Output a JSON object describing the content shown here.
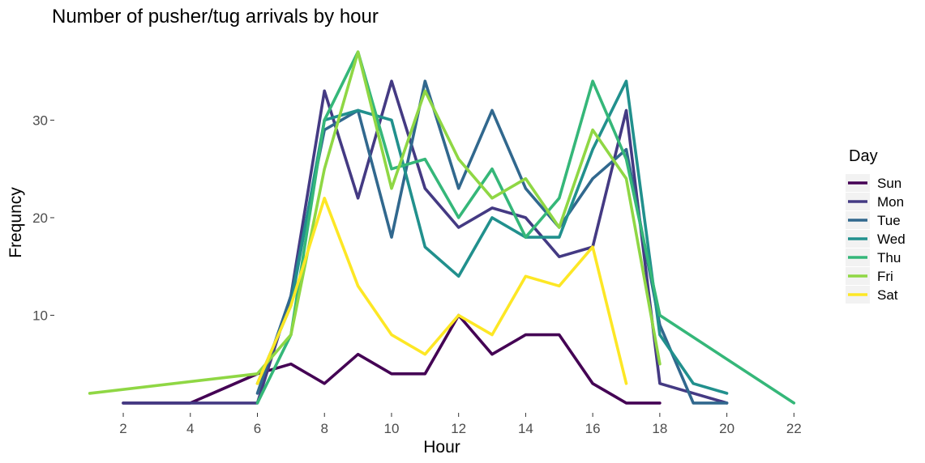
{
  "chart_data": {
    "type": "line",
    "title": "Number of pusher/tug arrivals by hour",
    "xlabel": "Hour",
    "ylabel": "Frequncy",
    "xlim": [
      0.5,
      22.5
    ],
    "ylim": [
      0,
      38
    ],
    "x_ticks": [
      2,
      4,
      6,
      8,
      10,
      12,
      14,
      16,
      18,
      20,
      22
    ],
    "y_ticks": [
      10,
      20,
      30
    ],
    "grid": false,
    "legend": {
      "title": "Day",
      "position": "right"
    },
    "series": [
      {
        "name": "Sun",
        "color": "#440154",
        "x": [
          2,
          4,
          6,
          7,
          8,
          9,
          10,
          11,
          12,
          13,
          14,
          15,
          16,
          17,
          18
        ],
        "y": [
          1,
          1,
          4,
          5,
          3,
          6,
          4,
          4,
          10,
          6,
          8,
          8,
          3,
          1,
          1
        ]
      },
      {
        "name": "Mon",
        "color": "#443a83",
        "x": [
          2,
          6,
          7,
          8,
          9,
          10,
          11,
          12,
          13,
          14,
          15,
          16,
          17,
          18,
          20
        ],
        "y": [
          1,
          1,
          12,
          33,
          22,
          34,
          23,
          19,
          21,
          20,
          16,
          17,
          31,
          3,
          1
        ]
      },
      {
        "name": "Tue",
        "color": "#31688e",
        "x": [
          6,
          7,
          8,
          9,
          10,
          11,
          12,
          13,
          14,
          15,
          16,
          17,
          18,
          19,
          20
        ],
        "y": [
          2,
          12,
          29,
          31,
          18,
          34,
          23,
          31,
          23,
          19,
          24,
          27,
          9,
          1,
          1
        ]
      },
      {
        "name": "Wed",
        "color": "#21908d",
        "x": [
          6,
          7,
          8,
          9,
          10,
          11,
          12,
          13,
          14,
          15,
          16,
          17,
          18,
          19,
          20
        ],
        "y": [
          3,
          11,
          30,
          31,
          30,
          17,
          14,
          20,
          18,
          18,
          27,
          34,
          8,
          3,
          2
        ]
      },
      {
        "name": "Thu",
        "color": "#35b779",
        "x": [
          6,
          7,
          8,
          9,
          10,
          11,
          12,
          13,
          14,
          15,
          16,
          17,
          18,
          22
        ],
        "y": [
          1,
          8,
          30,
          37,
          25,
          26,
          20,
          25,
          18,
          22,
          34,
          26,
          10,
          1
        ]
      },
      {
        "name": "Fri",
        "color": "#8fd744",
        "x": [
          1,
          6,
          7,
          8,
          9,
          10,
          11,
          12,
          13,
          14,
          15,
          16,
          17,
          18
        ],
        "y": [
          2,
          4,
          8,
          25,
          37,
          23,
          33,
          26,
          22,
          24,
          19,
          29,
          24,
          5
        ]
      },
      {
        "name": "Sat",
        "color": "#fde725",
        "x": [
          6,
          7,
          8,
          9,
          10,
          11,
          12,
          13,
          14,
          15,
          16,
          17
        ],
        "y": [
          3,
          11,
          22,
          13,
          8,
          6,
          10,
          8,
          14,
          13,
          17,
          3
        ]
      }
    ]
  }
}
